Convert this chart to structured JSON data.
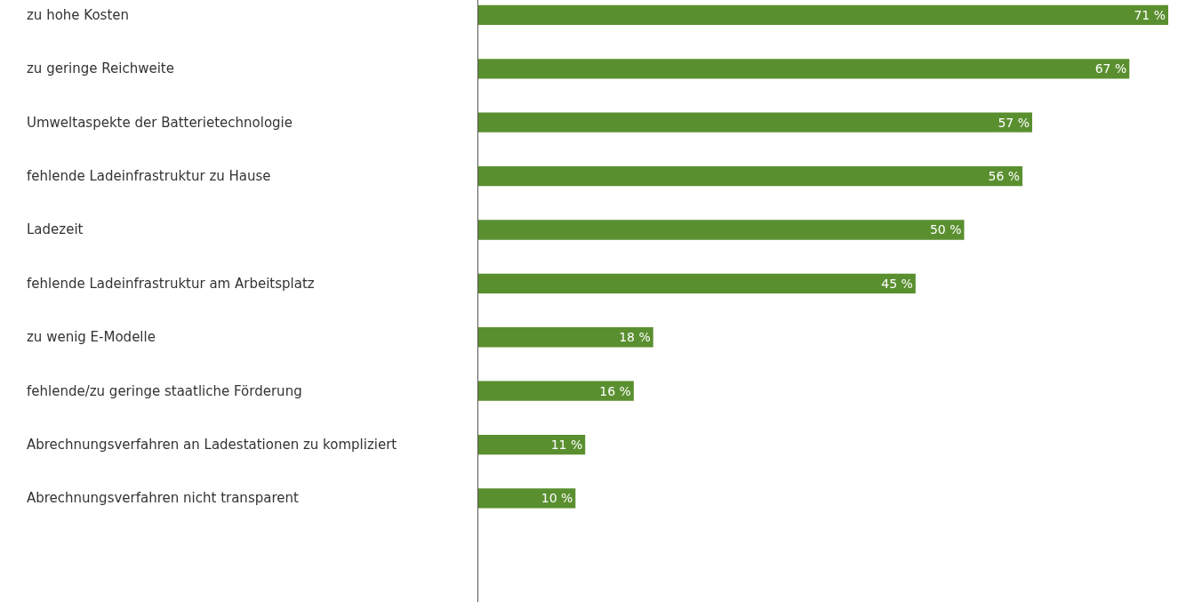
{
  "chart_data": {
    "type": "bar",
    "orientation": "horizontal",
    "categories": [
      "zu hohe Kosten",
      "zu geringe Reichweite",
      "Umweltaspekte der Batterietechnologie",
      "fehlende Ladeinfrastruktur zu Hause",
      "Ladezeit",
      "fehlende Ladeinfrastruktur am Arbeitsplatz",
      "zu wenig E-Modelle",
      "fehlende/zu geringe staatliche Förderung",
      "Abrechnungsverfahren an Ladestationen zu kompliziert",
      "Abrechnungsverfahren nicht transparent"
    ],
    "values": [
      71,
      67,
      57,
      56,
      50,
      45,
      18,
      16,
      11,
      10
    ],
    "value_labels": [
      "71 %",
      "67 %",
      "57 %",
      "56 %",
      "50 %",
      "45 %",
      "18 %",
      "16 %",
      "11 %",
      "10 %"
    ],
    "color": "#5a8f2f"
  }
}
